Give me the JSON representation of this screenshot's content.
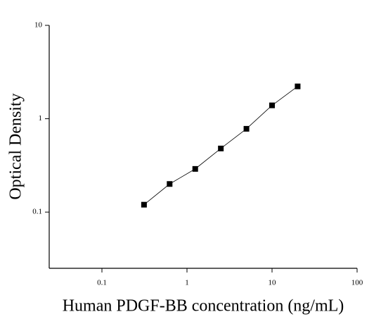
{
  "chart_data": {
    "type": "line",
    "x_label": "Human PDGF-BB concentration (ng/mL)",
    "y_label": "Optical Density",
    "x": [
      0.3125,
      0.625,
      1.25,
      2.5,
      5,
      10,
      20
    ],
    "series": [
      {
        "color": "#000000",
        "values": [
          0.12,
          0.2,
          0.29,
          0.48,
          0.78,
          1.39,
          2.22
        ]
      }
    ],
    "x_log": true,
    "y_log": true,
    "xlim": [
      0.024,
      100
    ],
    "xticks": [
      0.1,
      1,
      10,
      100
    ],
    "ylim": [
      0.025,
      10
    ],
    "yticks": [
      0.1,
      1,
      10
    ],
    "markers": true
  }
}
